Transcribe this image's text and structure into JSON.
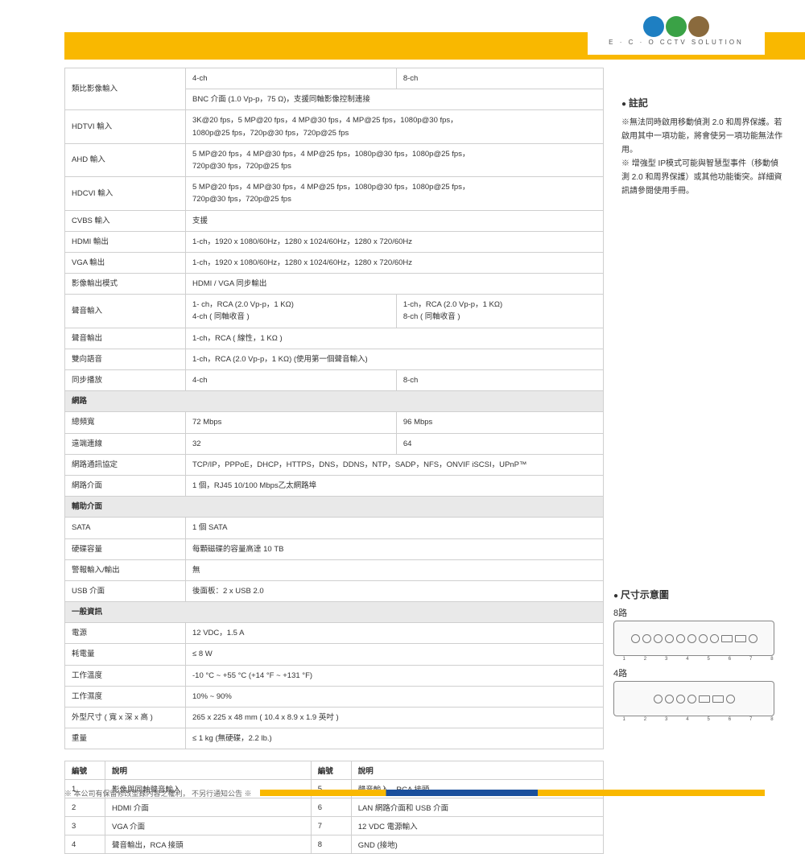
{
  "logo": {
    "colors": [
      "#1e7fc2",
      "#3aa246",
      "#8a6a3d"
    ],
    "text": "E · C · O   CCTV SOLUTION"
  },
  "notes": {
    "title": "註記",
    "lines": [
      "※無法同時啟用移動偵測 2.0 和周界保護。若啟用其中一項功能，將會使另一項功能無法作用。",
      "※ 增強型 IP模式可能與智慧型事件（移動偵測 2.0 和周界保護）或其他功能衝突。詳細資訊請參閱使用手冊。"
    ]
  },
  "dim": {
    "title": "尺寸示意圖",
    "label8": "8路",
    "label4": "4路",
    "nums8": [
      "1",
      "2",
      "3",
      "4",
      "5",
      "6",
      "7",
      "8"
    ],
    "nums4": [
      "1",
      "2",
      "3",
      "4",
      "5",
      "6",
      "7",
      "8"
    ]
  },
  "sections": [
    {
      "type": "row",
      "label": "類比影像輸入",
      "cols": [
        "4-ch",
        "8-ch"
      ]
    },
    {
      "type": "row",
      "label": "",
      "span": "BNC  介面  (1.0 Vp-p，75 Ω)，支援同軸影像控制連接"
    },
    {
      "type": "row",
      "label": "HDTVI  輸入",
      "span": "3K@20 fps，5 MP@20 fps，4 MP@30 fps，4 MP@25 fps，1080p@30 fps，\n1080p@25 fps，720p@30 fps，720p@25 fps"
    },
    {
      "type": "row",
      "label": "AHD  輸入",
      "span": "5 MP@20 fps，4 MP@30 fps，4 MP@25 fps，1080p@30 fps，1080p@25 fps，\n720p@30 fps，720p@25 fps"
    },
    {
      "type": "row",
      "label": "HDCVI  輸入",
      "span": "5 MP@20 fps，4 MP@30 fps，4 MP@25 fps，1080p@30 fps，1080p@25 fps，\n720p@30 fps，720p@25 fps"
    },
    {
      "type": "row",
      "label": "CVBS  輸入",
      "span": "支援"
    },
    {
      "type": "row",
      "label": "HDMI  輸出",
      "span": "1-ch，1920 x 1080/60Hz，1280 x 1024/60Hz，1280 x 720/60Hz"
    },
    {
      "type": "row",
      "label": "VGA  輸出",
      "span": "1-ch，1920 x 1080/60Hz，1280 x 1024/60Hz，1280 x 720/60Hz"
    },
    {
      "type": "row",
      "label": "影像輸出模式",
      "span": "HDMI / VGA  同步輸出"
    },
    {
      "type": "row",
      "label": "聲音輸入",
      "cols": [
        "1-   ch，RCA (2.0 Vp-p，1 KΩ)\n4-ch ( 同軸收音 )",
        "1-ch，RCA (2.0 Vp-p，1 KΩ)\n8-ch ( 同軸收音 )"
      ]
    },
    {
      "type": "row",
      "label": "聲音輸出",
      "span": "1-ch，RCA ( 線性，1 KΩ )"
    },
    {
      "type": "row",
      "label": "雙向語音",
      "span": "1-ch，RCA (2.0 Vp-p，1 KΩ) (使用第一個聲音輸入)"
    },
    {
      "type": "row",
      "label": "同步播放",
      "cols": [
        "4-ch",
        "8-ch"
      ]
    },
    {
      "type": "section",
      "label": "網路"
    },
    {
      "type": "row",
      "label": "總頻寬",
      "cols": [
        "72 Mbps",
        "96 Mbps"
      ]
    },
    {
      "type": "row",
      "label": "遠端連線",
      "cols": [
        "32",
        "64"
      ]
    },
    {
      "type": "row",
      "label": "網路通訊協定",
      "span": "TCP/IP，PPPoE，DHCP，HTTPS，DNS，DDNS，NTP，SADP，NFS，ONVIF iSCSI，UPnP™"
    },
    {
      "type": "row",
      "label": "網路介面",
      "span": "1  個，RJ45 10/100 Mbps乙太網路埠"
    },
    {
      "type": "section",
      "label": "輔助介面"
    },
    {
      "type": "row",
      "label": "SATA",
      "span": "1  個  SATA"
    },
    {
      "type": "row",
      "label": "硬碟容量",
      "span": "每顆磁碟的容量高達  10 TB"
    },
    {
      "type": "row",
      "label": "警報輸入/輸出",
      "span": "無"
    },
    {
      "type": "row",
      "label": "USB  介面",
      "span": "後面板：2 x USB 2.0"
    },
    {
      "type": "section",
      "label": "一般資訊"
    },
    {
      "type": "row",
      "label": "電源",
      "span": "12 VDC，1.5 A"
    },
    {
      "type": "row",
      "label": "耗電量",
      "span": "≤ 8 W"
    },
    {
      "type": "row",
      "label": "工作溫度",
      "span": "-10 °C ~ +55 °C (+14 °F ~ +131 °F)"
    },
    {
      "type": "row",
      "label": "工作濕度",
      "span": "10% ~ 90%"
    },
    {
      "type": "row",
      "label": "外型尺寸 ( 寬  x  深  x  高 )",
      "span": "265 x 225 x 48 mm ( 10.4 x 8.9 x 1.9  英吋 )"
    },
    {
      "type": "row",
      "label": "重量",
      "span": "≤ 1 kg (無硬碟，2.2 lb.)"
    }
  ],
  "legend": {
    "headers": [
      "編號",
      "說明",
      "編號",
      "說明"
    ],
    "rows": [
      [
        "1",
        "影像與同軸聲音輸入",
        "5",
        "聲音輸入，RCA  接頭"
      ],
      [
        "2",
        "HDMI  介面",
        "6",
        "LAN  網路介面和  USB  介面"
      ],
      [
        "3",
        "VGA  介面",
        "7",
        "12 VDC  電源輸入"
      ],
      [
        "4",
        "聲音輸出，RCA  接頭",
        "8",
        "GND (接地)"
      ]
    ]
  },
  "footer": "※ 本公司有保留修改型錄內容之權利，  不另行通知公告 ※"
}
